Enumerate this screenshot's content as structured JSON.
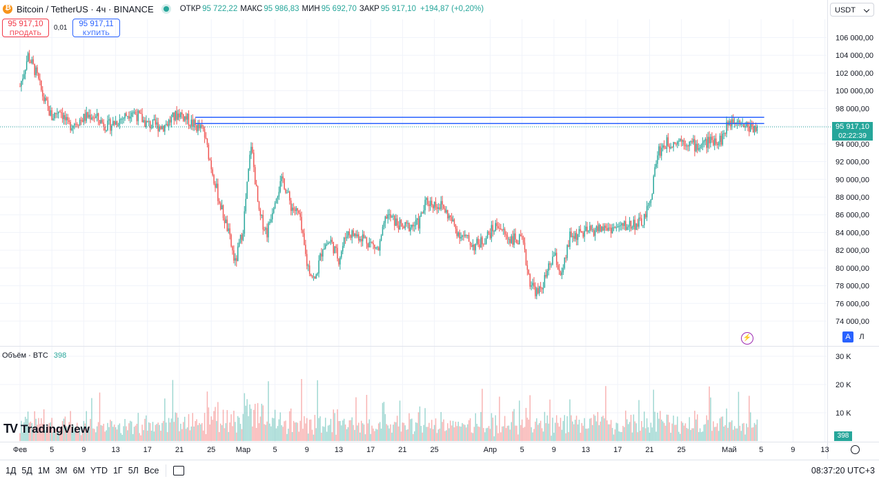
{
  "header": {
    "symbol": "Bitcoin / TetherUS · 4ч · BINANCE",
    "open_label": "ОТКР",
    "open_value": "95 722,22",
    "high_label": "МАКС",
    "high_value": "95 986,83",
    "low_label": "МИН",
    "low_value": "95 692,70",
    "close_label": "ЗАКР",
    "close_value": "95 917,10",
    "change": "+194,87 (+0,20%)"
  },
  "trade": {
    "sell_price": "95 917,10",
    "sell_label": "ПРОДАТЬ",
    "spread": "0,01",
    "buy_price": "95 917,11",
    "buy_label": "КУПИТЬ"
  },
  "currency": "USDT",
  "current_price": {
    "price": "95 917,10",
    "countdown": "02:22:39"
  },
  "volume": {
    "label": "Объём · BTC",
    "value": "398",
    "tag": "398"
  },
  "brand": "TradingView",
  "scale_buttons": {
    "auto": "A",
    "log": "Л"
  },
  "toolbar": {
    "ranges": [
      "1Д",
      "5Д",
      "1М",
      "3М",
      "6М",
      "YTD",
      "1Г",
      "5Л",
      "Все"
    ],
    "clock": "08:37:20 UTC+3"
  },
  "colors": {
    "up": "#26a69a",
    "down": "#ef5350",
    "level_line": "#2962ff",
    "current_price_line": "#26a69a"
  },
  "chart_data": {
    "type": "candlestick",
    "symbol": "BTCUSDT",
    "interval": "4h",
    "price_axis": {
      "ticks": [
        "106 000,00",
        "104 000,00",
        "102 000,00",
        "100 000,00",
        "98 000,00",
        "96 000,00",
        "94 000,00",
        "92 000,00",
        "90 000,00",
        "88 000,00",
        "86 000,00",
        "84 000,00",
        "82 000,00",
        "80 000,00",
        "78 000,00",
        "76 000,00",
        "74 000,00"
      ],
      "tick_values": [
        106000,
        104000,
        102000,
        100000,
        98000,
        96000,
        94000,
        92000,
        90000,
        88000,
        86000,
        84000,
        82000,
        80000,
        78000,
        76000,
        74000
      ],
      "range": [
        73000,
        108000
      ]
    },
    "volume_axis": {
      "ticks": [
        "30 K",
        "20 K",
        "10 K"
      ],
      "tick_values": [
        30000,
        20000,
        10000
      ]
    },
    "time_axis": {
      "labels": [
        "Фев",
        "5",
        "9",
        "13",
        "17",
        "21",
        "25",
        "Мар",
        "5",
        "9",
        "13",
        "17",
        "21",
        "25",
        "Апр",
        "5",
        "9",
        "13",
        "17",
        "21",
        "25",
        "Май",
        "5",
        "9",
        "13"
      ],
      "dates": [
        "2025-02-01",
        "2025-02-05",
        "2025-02-09",
        "2025-02-13",
        "2025-02-17",
        "2025-02-21",
        "2025-02-25",
        "2025-03-01",
        "2025-03-05",
        "2025-03-09",
        "2025-03-13",
        "2025-03-17",
        "2025-03-21",
        "2025-03-25",
        "2025-04-01",
        "2025-04-05",
        "2025-04-09",
        "2025-04-13",
        "2025-04-17",
        "2025-04-21",
        "2025-04-25",
        "2025-05-01",
        "2025-05-05",
        "2025-05-09",
        "2025-05-13"
      ]
    },
    "horizontal_levels": [
      97000,
      96300
    ],
    "current_price": 95917.1,
    "close_path": [
      [
        "2025-02-01",
        100500
      ],
      [
        "2025-02-02",
        104000
      ],
      [
        "2025-02-03",
        102000
      ],
      [
        "2025-02-04",
        99000
      ],
      [
        "2025-02-05",
        97000
      ],
      [
        "2025-02-06",
        98000
      ],
      [
        "2025-02-07",
        96000
      ],
      [
        "2025-02-08",
        96500
      ],
      [
        "2025-02-10",
        97300
      ],
      [
        "2025-02-12",
        96000
      ],
      [
        "2025-02-14",
        97000
      ],
      [
        "2025-02-15",
        97800
      ],
      [
        "2025-02-17",
        96200
      ],
      [
        "2025-02-19",
        96000
      ],
      [
        "2025-02-21",
        97500
      ],
      [
        "2025-02-23",
        96000
      ],
      [
        "2025-02-24",
        95500
      ],
      [
        "2025-02-25",
        91500
      ],
      [
        "2025-02-26",
        87500
      ],
      [
        "2025-02-27",
        84500
      ],
      [
        "2025-02-28",
        80500
      ],
      [
        "2025-03-01",
        84500
      ],
      [
        "2025-03-02",
        94000
      ],
      [
        "2025-03-03",
        86000
      ],
      [
        "2025-03-04",
        84000
      ],
      [
        "2025-03-05",
        88000
      ],
      [
        "2025-03-06",
        90000
      ],
      [
        "2025-03-07",
        87000
      ],
      [
        "2025-03-08",
        86000
      ],
      [
        "2025-03-09",
        80500
      ],
      [
        "2025-03-10",
        78500
      ],
      [
        "2025-03-11",
        82500
      ],
      [
        "2025-03-12",
        83000
      ],
      [
        "2025-03-13",
        81000
      ],
      [
        "2025-03-14",
        84000
      ],
      [
        "2025-03-16",
        83500
      ],
      [
        "2025-03-18",
        82000
      ],
      [
        "2025-03-19",
        86000
      ],
      [
        "2025-03-21",
        84500
      ],
      [
        "2025-03-23",
        85000
      ],
      [
        "2025-03-24",
        87500
      ],
      [
        "2025-03-26",
        87000
      ],
      [
        "2025-03-28",
        84000
      ],
      [
        "2025-03-30",
        82500
      ],
      [
        "2025-03-31",
        83000
      ],
      [
        "2025-04-02",
        85000
      ],
      [
        "2025-04-03",
        83500
      ],
      [
        "2025-04-05",
        83000
      ],
      [
        "2025-04-06",
        78500
      ],
      [
        "2025-04-07",
        77000
      ],
      [
        "2025-04-08",
        79000
      ],
      [
        "2025-04-09",
        81500
      ],
      [
        "2025-04-10",
        79000
      ],
      [
        "2025-04-11",
        83500
      ],
      [
        "2025-04-13",
        84000
      ],
      [
        "2025-04-15",
        84500
      ],
      [
        "2025-04-17",
        84500
      ],
      [
        "2025-04-19",
        85000
      ],
      [
        "2025-04-20",
        85000
      ],
      [
        "2025-04-21",
        87000
      ],
      [
        "2025-04-22",
        93000
      ],
      [
        "2025-04-23",
        94000
      ],
      [
        "2025-04-25",
        94500
      ],
      [
        "2025-04-27",
        93700
      ],
      [
        "2025-04-29",
        94500
      ],
      [
        "2025-04-30",
        94500
      ],
      [
        "2025-05-01",
        96500
      ],
      [
        "2025-05-02",
        97000
      ],
      [
        "2025-05-03",
        96000
      ],
      [
        "2025-05-04",
        95917
      ]
    ]
  }
}
